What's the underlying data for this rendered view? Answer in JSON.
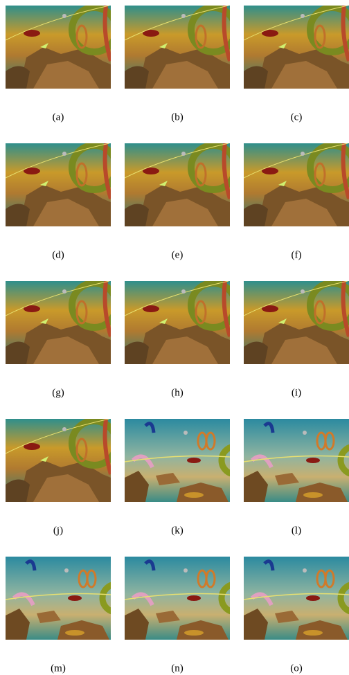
{
  "panels": [
    {
      "caption": "(a)"
    },
    {
      "caption": "(b)"
    },
    {
      "caption": "(c)"
    },
    {
      "caption": "(d)"
    },
    {
      "caption": "(e)"
    },
    {
      "caption": "(f)"
    },
    {
      "caption": "(g)"
    },
    {
      "caption": "(h)"
    },
    {
      "caption": "(i)"
    },
    {
      "caption": "(j)"
    },
    {
      "caption": "(k)"
    },
    {
      "caption": "(l)"
    },
    {
      "caption": "(m)"
    },
    {
      "caption": "(n)"
    },
    {
      "caption": "(o)"
    }
  ]
}
